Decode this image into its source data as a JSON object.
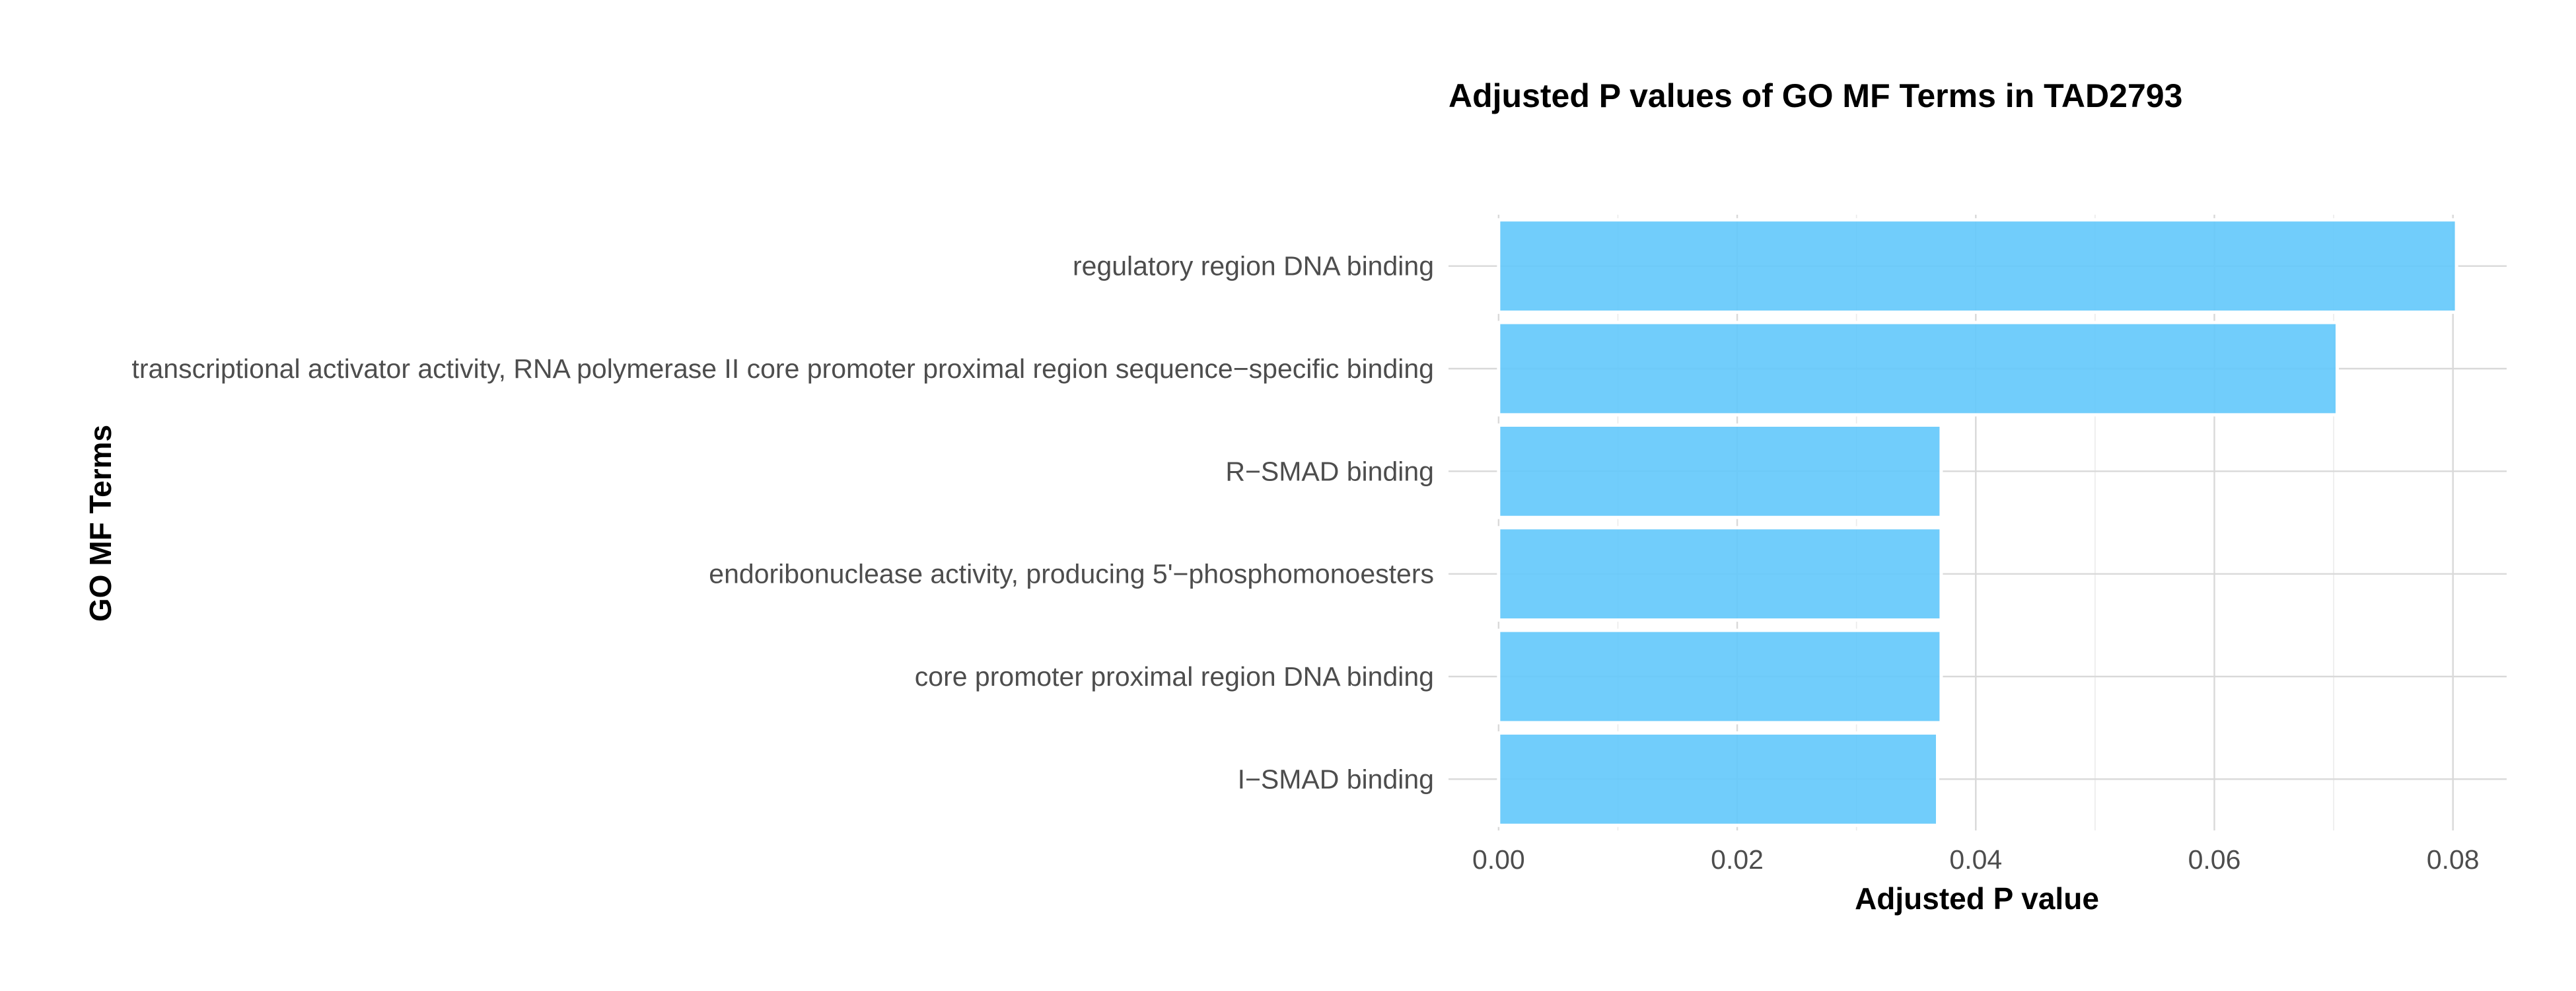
{
  "chart_data": {
    "type": "bar",
    "orientation": "horizontal",
    "title": "Adjusted P values of GO MF Terms in TAD2793",
    "xlabel": "Adjusted P value",
    "ylabel": "GO MF Terms",
    "categories": [
      "regulatory region DNA binding",
      "transcriptional activator activity, RNA polymerase II core promoter proximal region sequence−specific binding",
      "R−SMAD binding",
      "endoribonuclease activity, producing 5'−phosphomonoesters",
      "core promoter proximal region DNA binding",
      "I−SMAD binding"
    ],
    "values": [
      0.0803,
      0.0703,
      0.0371,
      0.0371,
      0.0371,
      0.0368
    ],
    "xlim": [
      -0.0042,
      0.0845
    ],
    "xticks": [
      0.0,
      0.02,
      0.04,
      0.06,
      0.08
    ],
    "xtick_labels": [
      "0.00",
      "0.02",
      "0.04",
      "0.06",
      "0.08"
    ],
    "bar_color": "#62c8fb",
    "grid": true
  }
}
